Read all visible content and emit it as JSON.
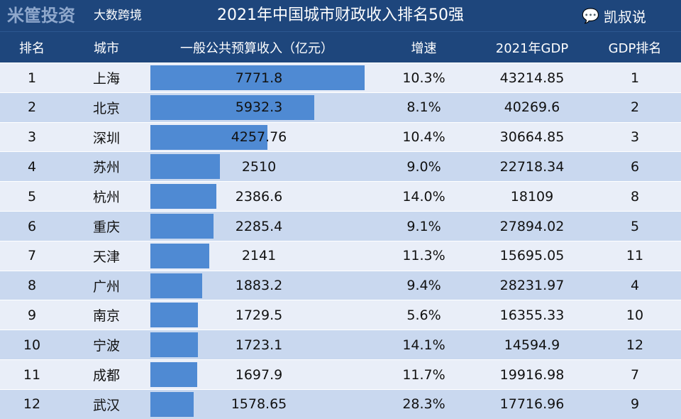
{
  "title": "2021年中国城市财政收入排名50强",
  "headers": [
    "排名",
    "城市",
    "一般公共预算收入（亿元）",
    "增速",
    "2021年GDP",
    "GDP排名"
  ],
  "max_revenue": 7771.8,
  "colors": {
    "header": "#1e467c",
    "bar": "#4f8ad3",
    "row_light": "#e9eef8",
    "row_dark": "#c9d8ef"
  },
  "rows": [
    {
      "rank": "1",
      "city": "上海",
      "revenue": "7771.8",
      "growth": "10.3%",
      "gdp": "43214.85",
      "gdp_rank": "1"
    },
    {
      "rank": "2",
      "city": "北京",
      "revenue": "5932.3",
      "growth": "8.1%",
      "gdp": "40269.6",
      "gdp_rank": "2"
    },
    {
      "rank": "3",
      "city": "深圳",
      "revenue": "4257.76",
      "growth": "10.4%",
      "gdp": "30664.85",
      "gdp_rank": "3"
    },
    {
      "rank": "4",
      "city": "苏州",
      "revenue": "2510",
      "growth": "9.0%",
      "gdp": "22718.34",
      "gdp_rank": "6"
    },
    {
      "rank": "5",
      "city": "杭州",
      "revenue": "2386.6",
      "growth": "14.0%",
      "gdp": "18109",
      "gdp_rank": "8"
    },
    {
      "rank": "6",
      "city": "重庆",
      "revenue": "2285.4",
      "growth": "9.1%",
      "gdp": "27894.02",
      "gdp_rank": "5"
    },
    {
      "rank": "7",
      "city": "天津",
      "revenue": "2141",
      "growth": "11.3%",
      "gdp": "15695.05",
      "gdp_rank": "11"
    },
    {
      "rank": "8",
      "city": "广州",
      "revenue": "1883.2",
      "growth": "9.4%",
      "gdp": "28231.97",
      "gdp_rank": "4"
    },
    {
      "rank": "9",
      "city": "南京",
      "revenue": "1729.5",
      "growth": "5.6%",
      "gdp": "16355.33",
      "gdp_rank": "10"
    },
    {
      "rank": "10",
      "city": "宁波",
      "revenue": "1723.1",
      "growth": "14.1%",
      "gdp": "14594.9",
      "gdp_rank": "12"
    },
    {
      "rank": "11",
      "city": "成都",
      "revenue": "1697.9",
      "growth": "11.7%",
      "gdp": "19916.98",
      "gdp_rank": "7"
    },
    {
      "rank": "12",
      "city": "武汉",
      "revenue": "1578.65",
      "growth": "28.3%",
      "gdp": "17716.96",
      "gdp_rank": "9"
    }
  ],
  "watermarks": {
    "mikuang": "米筐投资",
    "wechat": "凯叔说",
    "dashu": "大数跨境"
  }
}
